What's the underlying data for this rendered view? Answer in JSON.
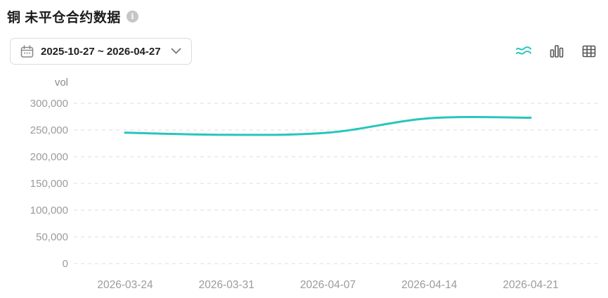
{
  "header": {
    "title": "铜 未平仓合约数据"
  },
  "toolbar": {
    "date_range": "2025-10-27 ~ 2026-04-27",
    "view_toggles": [
      {
        "name": "line-chart",
        "active": true
      },
      {
        "name": "bar-chart",
        "active": false
      },
      {
        "name": "table",
        "active": false
      }
    ]
  },
  "chart_data": {
    "type": "line",
    "title": "",
    "xlabel": "",
    "ylabel": "vol",
    "categories": [
      "2026-03-24",
      "2026-03-31",
      "2026-04-07",
      "2026-04-14",
      "2026-04-21"
    ],
    "values": [
      245000,
      241000,
      245000,
      272000,
      273000
    ],
    "ylim": [
      0,
      300000
    ],
    "yticks": [
      0,
      50000,
      100000,
      150000,
      200000,
      250000,
      300000
    ],
    "grid": true,
    "legend": "none",
    "smooth": true,
    "line_color": "#26c6bd"
  },
  "colors": {
    "accent": "#26c6bd",
    "tick_text": "#9b9b9b",
    "grid": "#dedede",
    "icon_gray": "#555555",
    "icon_light": "#8a8a8a"
  }
}
